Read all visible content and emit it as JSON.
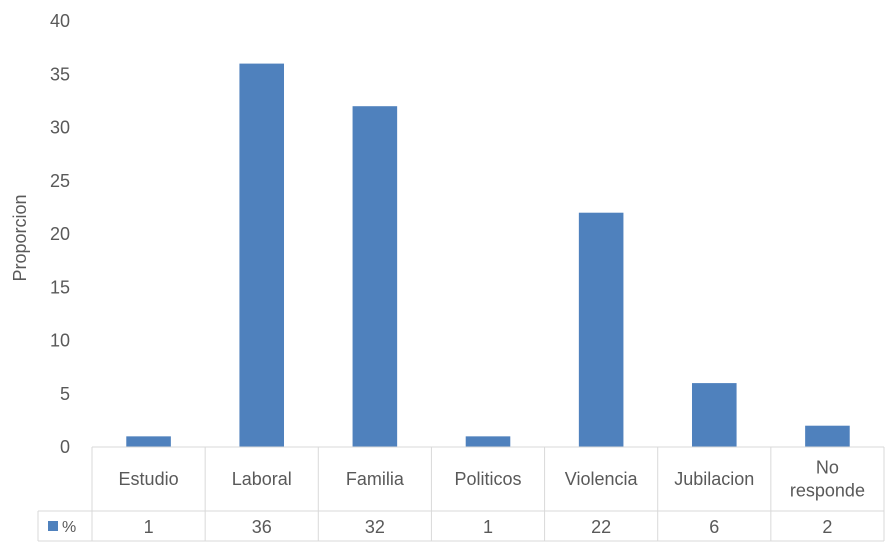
{
  "chart_data": {
    "type": "bar",
    "ylabel": "Proporcion",
    "ylim": [
      0,
      40
    ],
    "yticks": [
      0,
      5,
      10,
      15,
      20,
      25,
      30,
      35,
      40
    ],
    "categories": [
      [
        "Estudio"
      ],
      [
        "Laboral"
      ],
      [
        "Familia"
      ],
      [
        "Politicos"
      ],
      [
        "Violencia"
      ],
      [
        "Jubilacion"
      ],
      [
        "No",
        "responde"
      ]
    ],
    "series": [
      {
        "name": "%",
        "values": [
          1,
          36,
          32,
          1,
          22,
          6,
          2
        ]
      }
    ],
    "legend": "data-table",
    "grid": false,
    "colors": {
      "bar": "#4f81bd",
      "table_line": "#d9d9d9",
      "text": "#595959"
    }
  }
}
